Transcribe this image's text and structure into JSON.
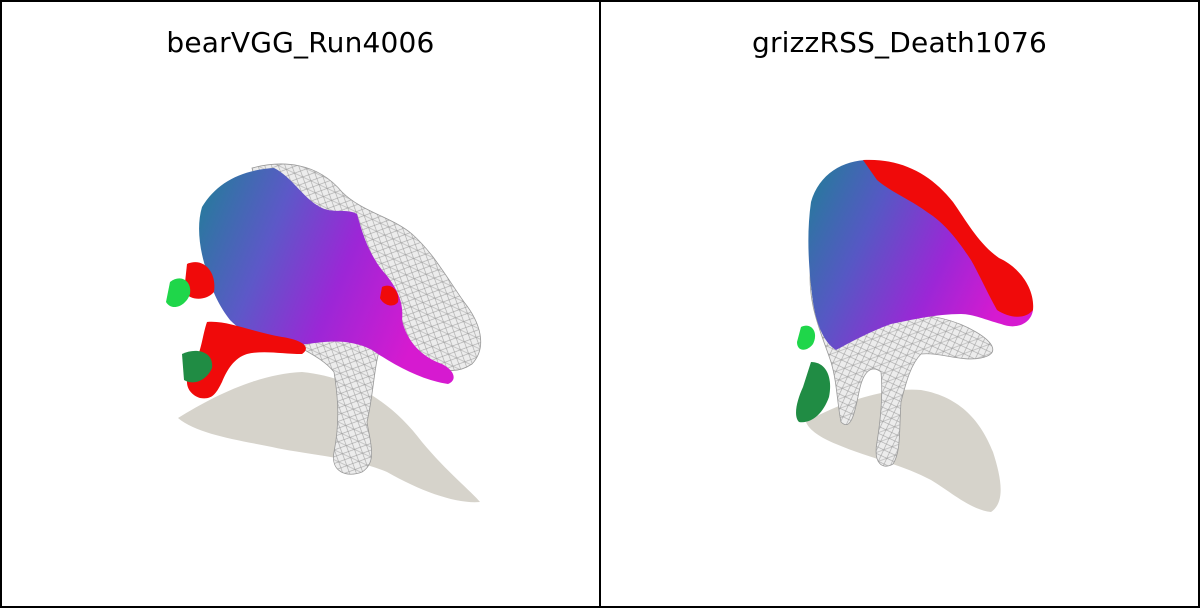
{
  "panels": [
    {
      "title": "bearVGG_Run4006"
    },
    {
      "title": "grizzRSS_Death1076"
    }
  ],
  "colors": {
    "shadow": "#d6d3cb",
    "mesh": "#e9e9e9",
    "mesh_line": "#9a9a9a",
    "teal": "#1f7f96",
    "purple": "#9b27d6",
    "magenta": "#d61ad0",
    "red": "#f00a0a",
    "green": "#1fd64a",
    "border": "#000000"
  }
}
